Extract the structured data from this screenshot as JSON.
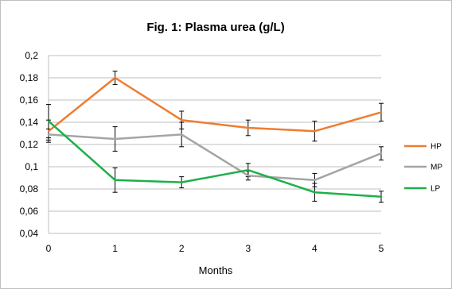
{
  "chart_data": {
    "type": "line",
    "title": "Fig. 1: Plasma urea (g/L)",
    "xlabel": "Months",
    "ylabel": "",
    "x": [
      0,
      1,
      2,
      3,
      4,
      5
    ],
    "x_tick_labels": [
      "0",
      "1",
      "2",
      "3",
      "4",
      "5"
    ],
    "ylim": [
      0.04,
      0.2
    ],
    "y_ticks": [
      0.04,
      0.06,
      0.08,
      0.1,
      0.12,
      0.14,
      0.16,
      0.18,
      0.2
    ],
    "y_tick_labels": [
      "0,04",
      "0,06",
      "0,08",
      "0,1",
      "0,12",
      "0,14",
      "0,16",
      "0,18",
      "0,2"
    ],
    "grid": "horizontal",
    "legend_position": "right",
    "series": [
      {
        "name": "HP",
        "color": "#ED7D31",
        "values": [
          0.132,
          0.18,
          0.142,
          0.135,
          0.132,
          0.149
        ],
        "errors": [
          0.01,
          0.006,
          0.008,
          0.007,
          0.009,
          0.008
        ]
      },
      {
        "name": "MP",
        "color": "#A5A5A5",
        "values": [
          0.129,
          0.125,
          0.129,
          0.092,
          0.088,
          0.112
        ],
        "errors": [
          0.005,
          0.011,
          0.011,
          0.004,
          0.006,
          0.006
        ]
      },
      {
        "name": "LP",
        "color": "#1EB04B",
        "values": [
          0.141,
          0.088,
          0.086,
          0.097,
          0.077,
          0.073
        ],
        "errors": [
          0.015,
          0.011,
          0.005,
          0.006,
          0.008,
          0.005
        ]
      }
    ]
  }
}
